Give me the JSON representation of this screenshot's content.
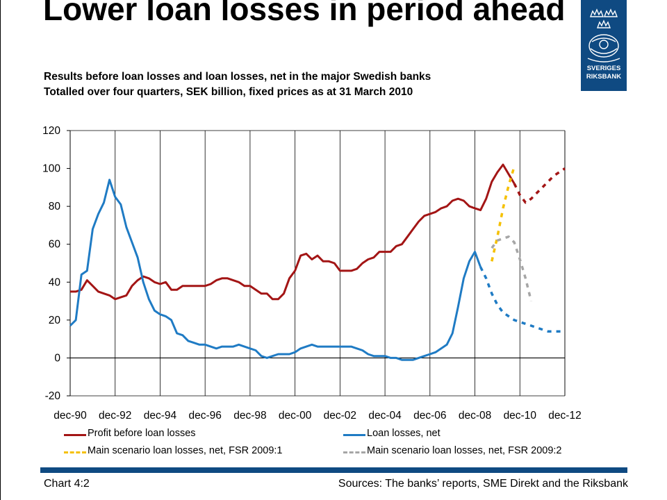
{
  "slide": {
    "title": "Lower loan losses in period ahead",
    "subtitle_line1": "Results before loan losses and loan losses, net in the major Swedish banks",
    "subtitle_line2": "Totalled over four quarters, SEK billion, fixed prices as at 31 March 2010",
    "logo_text_line1": "SVERIGES",
    "logo_text_line2": "RIKSBANK",
    "footer_left": "Chart 4:2",
    "footer_right": "Sources: The banks’ reports, SME Direkt and the Riksbank",
    "colors": {
      "brand_blue": "#0f4a82"
    }
  },
  "chart_data": {
    "type": "line",
    "title": "",
    "xlabel": "",
    "ylabel": "",
    "ylim": [
      -20,
      120
    ],
    "y_ticks": [
      -20,
      0,
      20,
      40,
      60,
      80,
      100,
      120
    ],
    "x_ticks": [
      "dec-90",
      "dec-92",
      "dec-94",
      "dec-96",
      "dec-98",
      "dec-00",
      "dec-02",
      "dec-04",
      "dec-06",
      "dec-08",
      "dec-10",
      "dec-12"
    ],
    "x_unit": "quarters from dec-90",
    "xlim": [
      0,
      88
    ],
    "grid": true,
    "legend_position": "bottom",
    "series": [
      {
        "name": "Profit before loan losses",
        "color": "#a31515",
        "style": "solid",
        "points": [
          [
            0,
            35
          ],
          [
            1,
            35
          ],
          [
            2,
            36
          ],
          [
            3,
            41
          ],
          [
            4,
            38
          ],
          [
            5,
            35
          ],
          [
            6,
            34
          ],
          [
            7,
            33
          ],
          [
            8,
            31
          ],
          [
            9,
            32
          ],
          [
            10,
            33
          ],
          [
            11,
            38
          ],
          [
            12,
            41
          ],
          [
            13,
            43
          ],
          [
            14,
            42
          ],
          [
            15,
            40
          ],
          [
            16,
            39
          ],
          [
            17,
            40
          ],
          [
            18,
            36
          ],
          [
            19,
            36
          ],
          [
            20,
            38
          ],
          [
            21,
            38
          ],
          [
            22,
            38
          ],
          [
            23,
            38
          ],
          [
            24,
            38
          ],
          [
            25,
            39
          ],
          [
            26,
            41
          ],
          [
            27,
            42
          ],
          [
            28,
            42
          ],
          [
            29,
            41
          ],
          [
            30,
            40
          ],
          [
            31,
            38
          ],
          [
            32,
            38
          ],
          [
            33,
            36
          ],
          [
            34,
            34
          ],
          [
            35,
            34
          ],
          [
            36,
            31
          ],
          [
            37,
            31
          ],
          [
            38,
            34
          ],
          [
            39,
            42
          ],
          [
            40,
            46
          ],
          [
            41,
            54
          ],
          [
            42,
            55
          ],
          [
            43,
            52
          ],
          [
            44,
            54
          ],
          [
            45,
            51
          ],
          [
            46,
            51
          ],
          [
            47,
            50
          ],
          [
            48,
            46
          ],
          [
            49,
            46
          ],
          [
            50,
            46
          ],
          [
            51,
            47
          ],
          [
            52,
            50
          ],
          [
            53,
            52
          ],
          [
            54,
            53
          ],
          [
            55,
            56
          ],
          [
            56,
            56
          ],
          [
            57,
            56
          ],
          [
            58,
            59
          ],
          [
            59,
            60
          ],
          [
            60,
            64
          ],
          [
            61,
            68
          ],
          [
            62,
            72
          ],
          [
            63,
            75
          ],
          [
            64,
            76
          ],
          [
            65,
            77
          ],
          [
            66,
            79
          ],
          [
            67,
            80
          ],
          [
            68,
            83
          ],
          [
            69,
            84
          ],
          [
            70,
            83
          ],
          [
            71,
            80
          ],
          [
            72,
            79
          ],
          [
            73,
            78
          ],
          [
            74,
            84
          ],
          [
            75,
            93
          ],
          [
            76,
            98
          ],
          [
            77,
            102
          ],
          [
            78,
            97
          ],
          [
            79,
            92
          ]
        ]
      },
      {
        "name": "Loan losses, net",
        "color": "#1f7bc4",
        "style": "solid",
        "points": [
          [
            0,
            17
          ],
          [
            1,
            20
          ],
          [
            2,
            44
          ],
          [
            3,
            46
          ],
          [
            4,
            68
          ],
          [
            5,
            76
          ],
          [
            6,
            82
          ],
          [
            7,
            94
          ],
          [
            8,
            85
          ],
          [
            9,
            81
          ],
          [
            10,
            69
          ],
          [
            11,
            61
          ],
          [
            12,
            53
          ],
          [
            13,
            40
          ],
          [
            14,
            31
          ],
          [
            15,
            25
          ],
          [
            16,
            23
          ],
          [
            17,
            22
          ],
          [
            18,
            20
          ],
          [
            19,
            13
          ],
          [
            20,
            12
          ],
          [
            21,
            9
          ],
          [
            22,
            8
          ],
          [
            23,
            7
          ],
          [
            24,
            7
          ],
          [
            25,
            6
          ],
          [
            26,
            5
          ],
          [
            27,
            6
          ],
          [
            28,
            6
          ],
          [
            29,
            6
          ],
          [
            30,
            7
          ],
          [
            31,
            6
          ],
          [
            32,
            5
          ],
          [
            33,
            4
          ],
          [
            34,
            1
          ],
          [
            35,
            0
          ],
          [
            36,
            1
          ],
          [
            37,
            2
          ],
          [
            38,
            2
          ],
          [
            39,
            2
          ],
          [
            40,
            3
          ],
          [
            41,
            5
          ],
          [
            42,
            6
          ],
          [
            43,
            7
          ],
          [
            44,
            6
          ],
          [
            45,
            6
          ],
          [
            46,
            6
          ],
          [
            47,
            6
          ],
          [
            48,
            6
          ],
          [
            49,
            6
          ],
          [
            50,
            6
          ],
          [
            51,
            5
          ],
          [
            52,
            4
          ],
          [
            53,
            2
          ],
          [
            54,
            1
          ],
          [
            55,
            1
          ],
          [
            56,
            1
          ],
          [
            57,
            0
          ],
          [
            58,
            0
          ],
          [
            59,
            -1
          ],
          [
            60,
            -1
          ],
          [
            61,
            -1
          ],
          [
            62,
            0
          ],
          [
            63,
            1
          ],
          [
            64,
            2
          ],
          [
            65,
            3
          ],
          [
            66,
            5
          ],
          [
            67,
            7
          ],
          [
            68,
            13
          ],
          [
            69,
            27
          ],
          [
            70,
            42
          ],
          [
            71,
            51
          ],
          [
            72,
            56
          ],
          [
            73,
            48
          ]
        ]
      },
      {
        "name": "Main scenario loan losses, net, FSR 2009:1",
        "color": "#f5c000",
        "style": "dashed",
        "points": [
          [
            75,
            51
          ],
          [
            76,
            64
          ],
          [
            77,
            79
          ],
          [
            78,
            91
          ],
          [
            79,
            101
          ]
        ]
      },
      {
        "name": "Main scenario loan losses, net, FSR 2009:2",
        "color": "#a6a6a6",
        "style": "dashed",
        "points": [
          [
            75,
            58
          ],
          [
            76,
            62
          ],
          [
            77,
            63
          ],
          [
            78,
            64
          ],
          [
            79,
            61
          ],
          [
            80,
            52
          ],
          [
            81,
            42
          ],
          [
            82,
            30
          ]
        ]
      },
      {
        "name": "Profit forecast",
        "color": "#a31515",
        "style": "dashed",
        "points": [
          [
            79,
            92
          ],
          [
            80,
            86
          ],
          [
            81,
            82
          ],
          [
            82,
            84
          ],
          [
            83,
            87
          ],
          [
            84,
            90
          ],
          [
            85,
            93
          ],
          [
            86,
            96
          ],
          [
            87,
            98
          ],
          [
            88,
            100
          ]
        ]
      },
      {
        "name": "Loan losses forecast",
        "color": "#1f7bc4",
        "style": "dashed",
        "points": [
          [
            73,
            48
          ],
          [
            74,
            42
          ],
          [
            75,
            34
          ],
          [
            76,
            28
          ],
          [
            77,
            24
          ],
          [
            78,
            22
          ],
          [
            79,
            20
          ],
          [
            80,
            19
          ],
          [
            81,
            18
          ],
          [
            82,
            17
          ],
          [
            83,
            16
          ],
          [
            84,
            15
          ],
          [
            85,
            14
          ],
          [
            86,
            14
          ],
          [
            87,
            14
          ],
          [
            88,
            14
          ]
        ]
      }
    ],
    "legend": [
      {
        "label": "Profit before loan losses",
        "color": "#a31515",
        "style": "solid"
      },
      {
        "label": "Loan losses, net",
        "color": "#1f7bc4",
        "style": "solid"
      },
      {
        "label": "Main scenario loan losses, net, FSR 2009:1",
        "color": "#f5c000",
        "style": "dashed"
      },
      {
        "label": "Main scenario loan losses, net, FSR 2009:2",
        "color": "#a6a6a6",
        "style": "dashed"
      }
    ]
  }
}
